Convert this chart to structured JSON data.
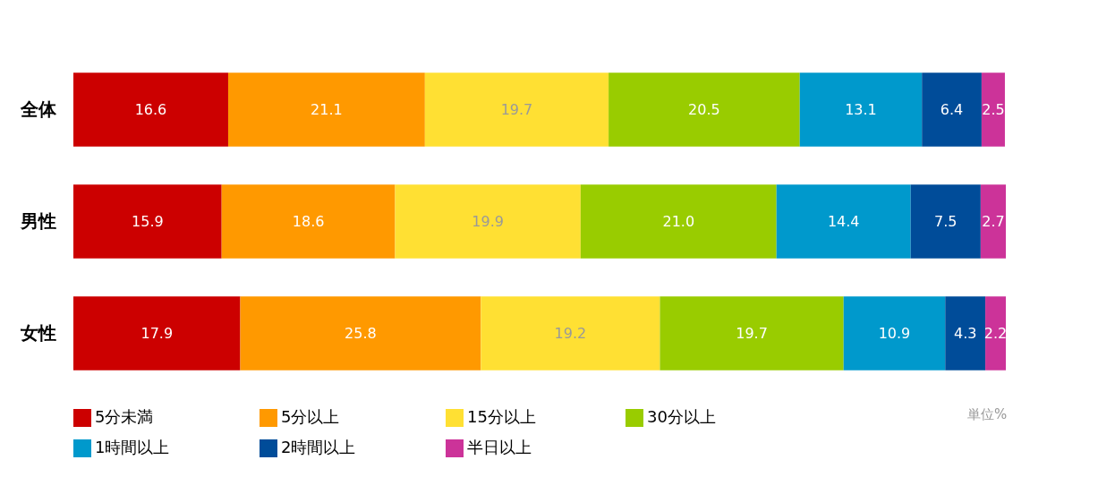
{
  "chart_data": {
    "type": "bar",
    "orientation": "horizontal",
    "stacked": true,
    "legend": "bottom",
    "tick_labels": "y",
    "categories": [
      "全体",
      "男性",
      "女性"
    ],
    "series": [
      {
        "name": "5分未満",
        "color": "#cc0000",
        "values": [
          16.6,
          15.9,
          17.9
        ],
        "value_labels": [
          "16.6",
          "15.9",
          "17.9"
        ]
      },
      {
        "name": "5分以上",
        "color": "#ff9900",
        "values": [
          21.1,
          18.6,
          25.8
        ],
        "value_labels": [
          "21.1",
          "18.6",
          "25.8"
        ]
      },
      {
        "name": "15分以上",
        "color": "#ffe033",
        "values": [
          19.7,
          19.9,
          19.2
        ],
        "value_labels": [
          "19.7",
          "19.9",
          "19.2"
        ]
      },
      {
        "name": "30分以上",
        "color": "#99cc00",
        "values": [
          20.5,
          21.0,
          19.7
        ],
        "value_labels": [
          "20.5",
          "21.0",
          "19.7"
        ]
      },
      {
        "name": "1時間以上",
        "color": "#0099cc",
        "values": [
          13.1,
          14.4,
          10.9
        ],
        "value_labels": [
          "13.1",
          "14.4",
          "10.9"
        ]
      },
      {
        "name": "2時間以上",
        "color": "#004c99",
        "values": [
          6.4,
          7.5,
          4.3
        ],
        "value_labels": [
          "6.4",
          "7.5",
          "4.3"
        ]
      },
      {
        "name": "半日以上",
        "color": "#cc3399",
        "values": [
          2.5,
          2.7,
          2.2
        ],
        "value_labels": [
          "2.5",
          "2.7",
          "2.2"
        ]
      }
    ],
    "annotations": [
      "単位%"
    ]
  }
}
